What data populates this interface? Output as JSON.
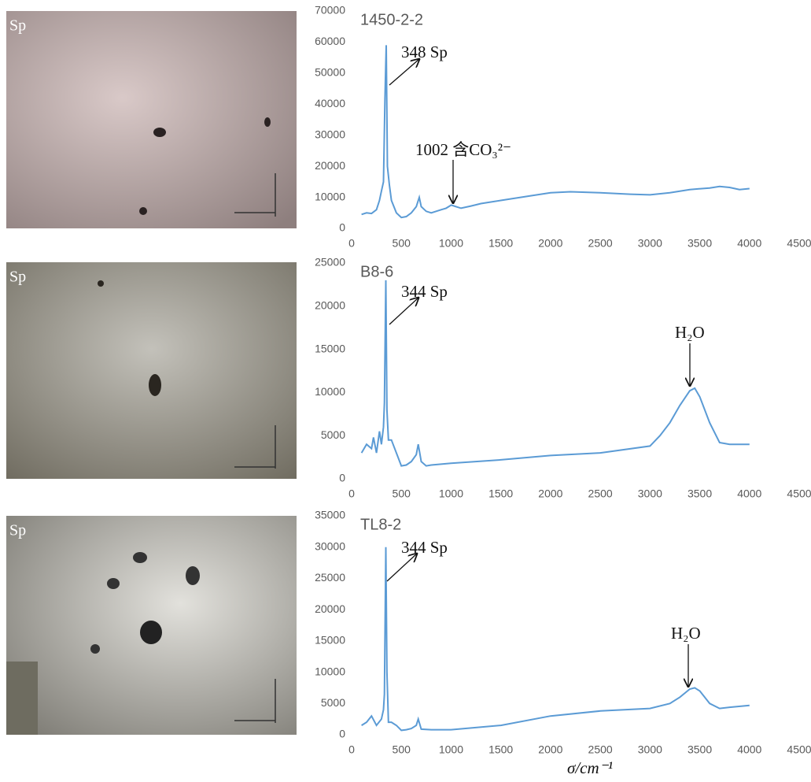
{
  "chart_data": [
    {
      "type": "line",
      "title": "1450-2-2",
      "image_label": "Sp",
      "x": [
        100,
        150,
        200,
        250,
        280,
        300,
        320,
        335,
        348,
        360,
        380,
        400,
        450,
        500,
        550,
        600,
        650,
        680,
        700,
        750,
        800,
        850,
        900,
        950,
        1002,
        1050,
        1100,
        1200,
        1300,
        1500,
        1800,
        2000,
        2200,
        2500,
        2800,
        3000,
        3200,
        3400,
        3600,
        3700,
        3800,
        3900,
        4000
      ],
      "series": [
        {
          "color": "#5b9bd5",
          "values": [
            4500,
            5000,
            4800,
            6000,
            9000,
            12000,
            15000,
            42000,
            59000,
            20000,
            14000,
            9000,
            5000,
            3500,
            3800,
            5000,
            7000,
            10000,
            7000,
            5500,
            5000,
            5500,
            6000,
            6500,
            7500,
            7000,
            6500,
            7200,
            8000,
            9000,
            10500,
            11500,
            11800,
            11500,
            11000,
            10800,
            11500,
            12500,
            13000,
            13500,
            13200,
            12500,
            12800
          ]
        }
      ],
      "annotations": [
        "348 Sp",
        "1002 含CO₃²⁻"
      ],
      "xlim": [
        0,
        4500
      ],
      "xticks": [
        0,
        500,
        1000,
        1500,
        2000,
        2500,
        3000,
        3500,
        4000,
        4500
      ],
      "ylim": [
        0,
        70000
      ],
      "yticks": [
        0,
        10000,
        20000,
        30000,
        40000,
        50000,
        60000,
        70000
      ]
    },
    {
      "type": "line",
      "title": "B8-6",
      "image_label": "Sp",
      "x": [
        100,
        150,
        200,
        220,
        250,
        280,
        300,
        320,
        330,
        344,
        355,
        370,
        400,
        450,
        500,
        550,
        600,
        650,
        670,
        700,
        750,
        800,
        1000,
        1500,
        2000,
        2500,
        3000,
        3100,
        3200,
        3300,
        3400,
        3450,
        3500,
        3600,
        3700,
        3800,
        4000
      ],
      "series": [
        {
          "color": "#5b9bd5",
          "values": [
            3000,
            4000,
            3500,
            4800,
            3000,
            5500,
            4000,
            6000,
            8800,
            23000,
            8000,
            4500,
            4500,
            3000,
            1500,
            1600,
            2000,
            2800,
            4000,
            2000,
            1500,
            1600,
            1800,
            2200,
            2700,
            3000,
            3800,
            5000,
            6500,
            8500,
            10200,
            10500,
            9500,
            6500,
            4200,
            4000,
            4000
          ]
        }
      ],
      "annotations": [
        "344 Sp",
        "H₂O"
      ],
      "xlim": [
        0,
        4500
      ],
      "xticks": [
        0,
        500,
        1000,
        1500,
        2000,
        2500,
        3000,
        3500,
        4000,
        4500
      ],
      "ylim": [
        0,
        25000
      ],
      "yticks": [
        0,
        5000,
        10000,
        15000,
        20000,
        25000
      ]
    },
    {
      "type": "line",
      "title": "TL8-2",
      "image_label": "Sp",
      "x_label": "σ/cm⁻¹",
      "x": [
        100,
        150,
        200,
        250,
        300,
        320,
        330,
        344,
        355,
        370,
        400,
        450,
        500,
        550,
        600,
        650,
        670,
        700,
        800,
        1000,
        1500,
        2000,
        2500,
        3000,
        3200,
        3300,
        3400,
        3450,
        3500,
        3600,
        3700,
        3800,
        4000
      ],
      "series": [
        {
          "color": "#5b9bd5",
          "values": [
            1500,
            2000,
            3000,
            1500,
            2500,
            4000,
            6500,
            30000,
            10000,
            2000,
            2000,
            1500,
            700,
            800,
            1000,
            1500,
            2500,
            900,
            800,
            800,
            1500,
            3000,
            3800,
            4200,
            5000,
            6000,
            7300,
            7500,
            7000,
            5000,
            4200,
            4400,
            4700
          ]
        }
      ],
      "annotations": [
        "344 Sp",
        "H₂O"
      ],
      "xlim": [
        0,
        4500
      ],
      "xticks": [
        0,
        500,
        1000,
        1500,
        2000,
        2500,
        3000,
        3500,
        4000,
        4500
      ],
      "ylim": [
        0,
        35000
      ],
      "yticks": [
        0,
        5000,
        10000,
        15000,
        20000,
        25000,
        30000,
        35000
      ]
    }
  ]
}
